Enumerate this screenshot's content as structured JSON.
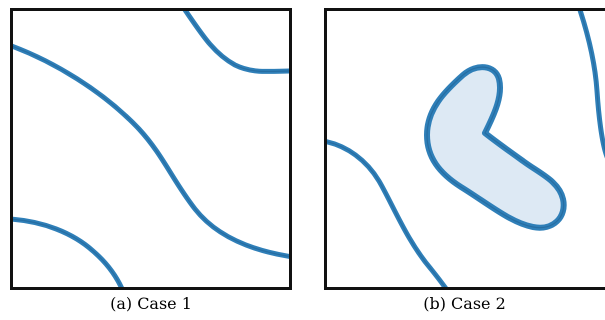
{
  "figure": {
    "panels": [
      {
        "caption": "(a)  Case 1"
      },
      {
        "caption": "(b)  Case 2"
      }
    ],
    "colors": {
      "curve": "#2f7fb8",
      "region_fill": "#dde9f4",
      "frame": "#111111"
    }
  }
}
